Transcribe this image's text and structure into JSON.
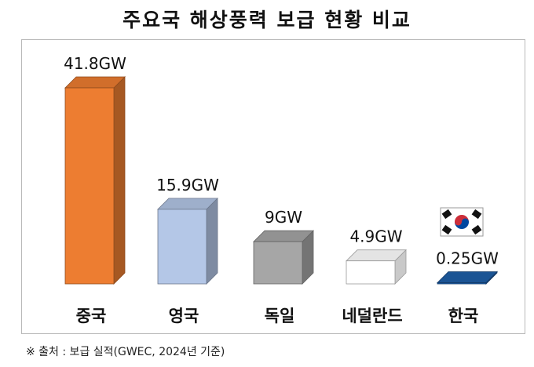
{
  "title": "주요국 해상풍력 보급 현황 비교",
  "source": "※ 출처 : 보급 실적(GWEC, 2024년 기준)",
  "chart_data": {
    "type": "bar",
    "categories": [
      "중국",
      "영국",
      "독일",
      "네덜란드",
      "한국"
    ],
    "values": [
      41.8,
      15.9,
      9,
      4.9,
      0.25
    ],
    "data_labels": [
      "41.8GW",
      "15.9GW",
      "9GW",
      "4.9GW",
      "0.25GW"
    ],
    "unit": "GW",
    "colors": [
      "#ed7d31",
      "#b4c7e7",
      "#a6a6a6",
      "#ffffff",
      "#1f5fa8"
    ],
    "legend": "none",
    "grid": false
  }
}
